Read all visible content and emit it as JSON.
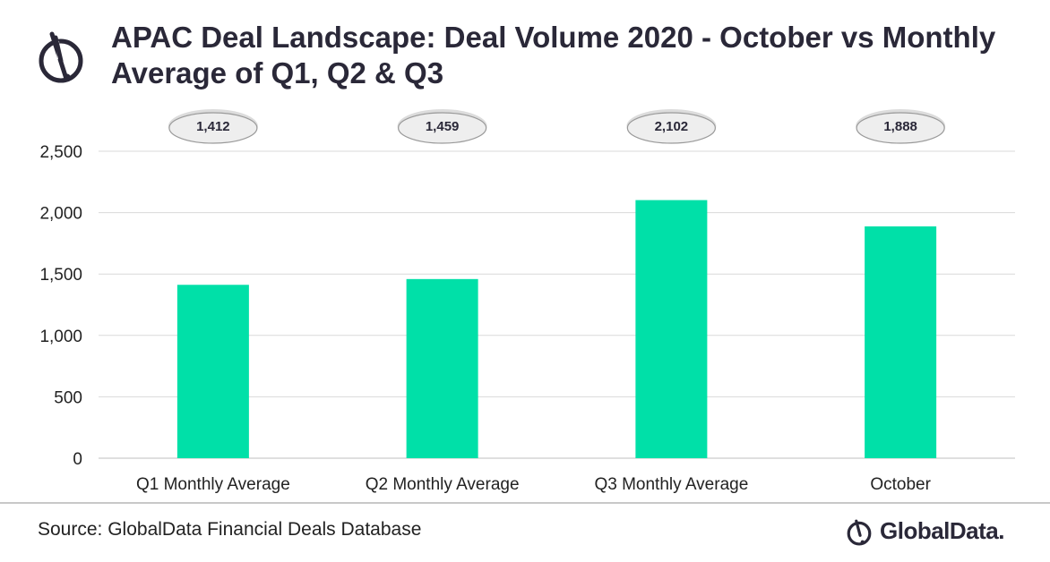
{
  "title": {
    "line1": "APAC Deal Landscape: Deal Volume 2020 - October vs Monthly",
    "line2": "Average of Q1, Q2 & Q3"
  },
  "source": "Source: GlobalData Financial Deals Database",
  "logo": {
    "text": "GlobalData."
  },
  "colors": {
    "bar": "#00e0a8",
    "title": "#2a2838",
    "grid": "#d9d9d9",
    "bubble": "#eeeeee"
  },
  "chart_data": {
    "type": "bar",
    "title": "APAC Deal Landscape: Deal Volume 2020 - October vs Monthly Average of Q1, Q2 & Q3",
    "categories": [
      "Q1 Monthly Average",
      "Q2 Monthly Average",
      "Q3 Monthly Average",
      "October"
    ],
    "values": [
      1412,
      1459,
      2102,
      1888
    ],
    "data_labels": [
      "1,412",
      "1,459",
      "2,102",
      "1,888"
    ],
    "yticks": [
      0,
      500,
      1000,
      1500,
      2000,
      2500
    ],
    "ytick_labels": [
      "0",
      "500",
      "1,000",
      "1,500",
      "2,000",
      "2,500"
    ],
    "ylim": [
      0,
      2500
    ],
    "xlabel": "",
    "ylabel": "",
    "grid": true,
    "legend": "none"
  }
}
